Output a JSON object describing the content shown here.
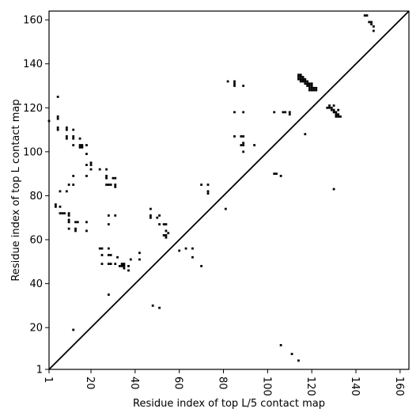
{
  "chart_data": {
    "type": "heatmap",
    "xlabel": "Residue index of top L/5 contact map",
    "ylabel": "Residue index of top L contact map",
    "xlim": [
      1,
      164
    ],
    "ylim": [
      1,
      164
    ],
    "x_ticks": [
      "1",
      "20",
      "40",
      "60",
      "80",
      "100",
      "120",
      "140",
      "160"
    ],
    "y_ticks": [
      "1",
      "20",
      "40",
      "60",
      "80",
      "100",
      "120",
      "140",
      "160"
    ],
    "diagonal_line": true,
    "contact_color": "#000000",
    "upper_triangle_contacts": [
      [
        106,
        12
      ],
      [
        111,
        8
      ],
      [
        114,
        5
      ]
    ],
    "lower_triangle_contacts": [
      [
        1,
        114
      ],
      [
        4,
        75
      ],
      [
        4,
        76
      ],
      [
        5,
        116
      ],
      [
        5,
        115
      ],
      [
        5,
        125
      ],
      [
        5,
        111
      ],
      [
        5,
        110
      ],
      [
        6,
        82
      ],
      [
        6,
        75
      ],
      [
        6,
        72
      ],
      [
        7,
        72
      ],
      [
        8,
        72
      ],
      [
        9,
        111
      ],
      [
        9,
        110
      ],
      [
        9,
        107
      ],
      [
        9,
        106
      ],
      [
        9,
        82
      ],
      [
        10,
        85
      ],
      [
        10,
        72
      ],
      [
        10,
        71
      ],
      [
        10,
        69
      ],
      [
        10,
        68
      ],
      [
        10,
        65
      ],
      [
        12,
        110
      ],
      [
        12,
        107
      ],
      [
        12,
        106
      ],
      [
        12,
        103
      ],
      [
        12,
        89
      ],
      [
        12,
        85
      ],
      [
        12,
        19
      ],
      [
        13,
        68
      ],
      [
        13,
        65
      ],
      [
        13,
        64
      ],
      [
        14,
        68
      ],
      [
        15,
        106
      ],
      [
        15,
        103
      ],
      [
        15,
        102
      ],
      [
        16,
        103
      ],
      [
        16,
        102
      ],
      [
        18,
        103
      ],
      [
        18,
        99
      ],
      [
        18,
        94
      ],
      [
        18,
        89
      ],
      [
        18,
        68
      ],
      [
        18,
        64
      ],
      [
        20,
        95
      ],
      [
        20,
        94
      ],
      [
        20,
        92
      ],
      [
        24,
        92
      ],
      [
        24,
        56
      ],
      [
        25,
        56
      ],
      [
        25,
        53
      ],
      [
        25,
        49
      ],
      [
        27,
        92
      ],
      [
        27,
        89
      ],
      [
        27,
        88
      ],
      [
        27,
        85
      ],
      [
        28,
        85
      ],
      [
        28,
        71
      ],
      [
        28,
        67
      ],
      [
        28,
        56
      ],
      [
        28,
        53
      ],
      [
        28,
        49
      ],
      [
        28,
        35
      ],
      [
        29,
        85
      ],
      [
        29,
        53
      ],
      [
        29,
        49
      ],
      [
        30,
        88
      ],
      [
        31,
        88
      ],
      [
        31,
        85
      ],
      [
        31,
        84
      ],
      [
        31,
        71
      ],
      [
        31,
        49
      ],
      [
        32,
        52
      ],
      [
        33,
        48
      ],
      [
        34,
        49
      ],
      [
        34,
        48
      ],
      [
        35,
        49
      ],
      [
        35,
        48
      ],
      [
        35,
        47
      ],
      [
        37,
        48
      ],
      [
        37,
        46
      ],
      [
        38,
        51
      ],
      [
        42,
        54
      ],
      [
        42,
        51
      ],
      [
        47,
        74
      ],
      [
        47,
        71
      ],
      [
        47,
        70
      ],
      [
        48,
        30
      ],
      [
        50,
        70
      ],
      [
        51,
        71
      ],
      [
        51,
        67
      ],
      [
        51,
        29
      ],
      [
        53,
        67
      ],
      [
        53,
        62
      ],
      [
        54,
        67
      ],
      [
        54,
        64
      ],
      [
        54,
        62
      ],
      [
        54,
        61
      ],
      [
        55,
        63
      ],
      [
        60,
        55
      ],
      [
        63,
        56
      ],
      [
        66,
        56
      ],
      [
        66,
        52
      ],
      [
        70,
        85
      ],
      [
        70,
        48
      ],
      [
        73,
        85
      ],
      [
        73,
        82
      ],
      [
        73,
        81
      ],
      [
        81,
        74
      ],
      [
        82,
        132
      ],
      [
        85,
        132
      ],
      [
        85,
        131
      ],
      [
        85,
        130
      ],
      [
        85,
        118
      ],
      [
        85,
        107
      ],
      [
        88,
        107
      ],
      [
        88,
        103
      ],
      [
        89,
        130
      ],
      [
        89,
        118
      ],
      [
        89,
        107
      ],
      [
        89,
        104
      ],
      [
        89,
        103
      ],
      [
        89,
        100
      ],
      [
        94,
        103
      ],
      [
        103,
        118
      ],
      [
        103,
        90
      ],
      [
        104,
        90
      ],
      [
        106,
        89
      ],
      [
        107,
        118
      ],
      [
        108,
        118
      ],
      [
        110,
        118
      ],
      [
        110,
        117
      ],
      [
        114,
        135
      ],
      [
        114,
        134
      ],
      [
        114,
        133
      ],
      [
        115,
        135
      ],
      [
        115,
        134
      ],
      [
        115,
        133
      ],
      [
        115,
        132
      ],
      [
        116,
        134
      ],
      [
        116,
        133
      ],
      [
        116,
        132
      ],
      [
        117,
        133
      ],
      [
        117,
        132
      ],
      [
        117,
        131
      ],
      [
        117,
        108
      ],
      [
        118,
        132
      ],
      [
        118,
        131
      ],
      [
        118,
        130
      ],
      [
        119,
        131
      ],
      [
        119,
        130
      ],
      [
        119,
        129
      ],
      [
        119,
        128
      ],
      [
        120,
        131
      ],
      [
        120,
        130
      ],
      [
        120,
        129
      ],
      [
        120,
        128
      ],
      [
        121,
        129
      ],
      [
        121,
        128
      ],
      [
        122,
        129
      ],
      [
        122,
        128
      ],
      [
        127,
        120
      ],
      [
        128,
        121
      ],
      [
        128,
        120
      ],
      [
        129,
        120
      ],
      [
        129,
        119
      ],
      [
        130,
        121
      ],
      [
        130,
        119
      ],
      [
        130,
        118
      ],
      [
        130,
        83
      ],
      [
        131,
        118
      ],
      [
        131,
        117
      ],
      [
        131,
        116
      ],
      [
        132,
        119
      ],
      [
        132,
        117
      ],
      [
        132,
        116
      ],
      [
        133,
        116
      ],
      [
        144,
        162
      ],
      [
        145,
        162
      ],
      [
        146,
        159
      ],
      [
        147,
        159
      ],
      [
        147,
        158
      ],
      [
        148,
        157
      ],
      [
        148,
        155
      ]
    ]
  }
}
